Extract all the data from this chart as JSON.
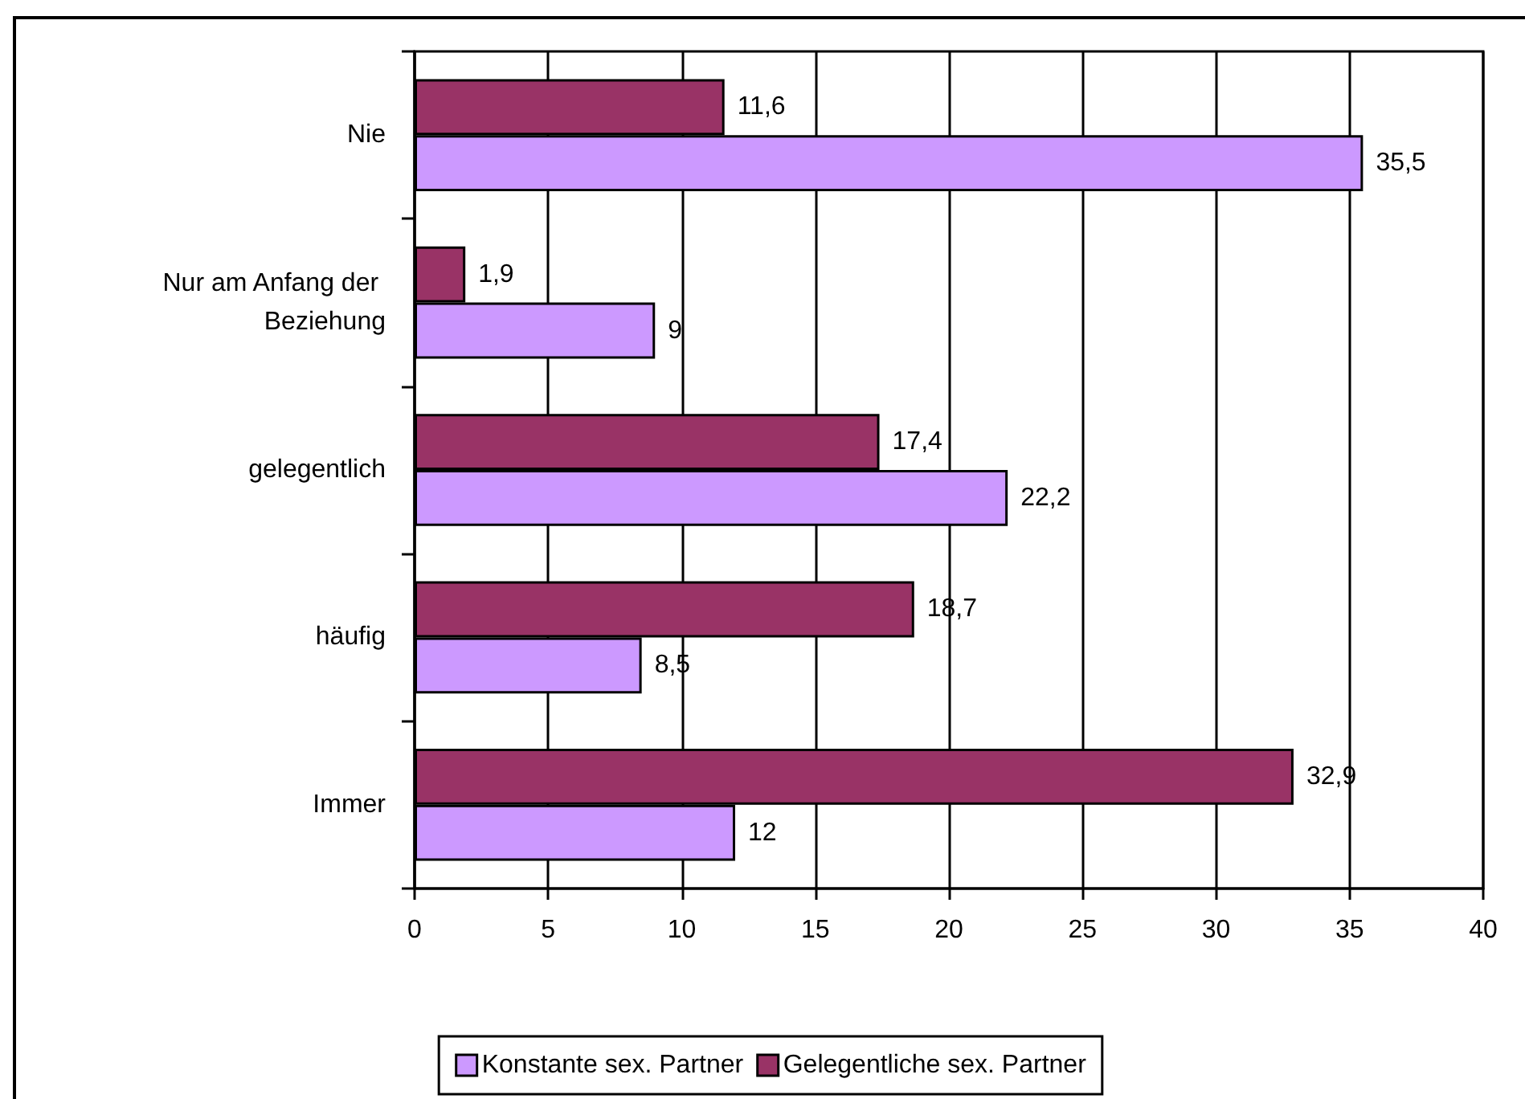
{
  "chart_data": {
    "type": "bar",
    "orientation": "horizontal",
    "categories": [
      "Nie",
      "Nur am Anfang der Beziehung",
      "gelegentlich",
      "häufig",
      "Immer"
    ],
    "series": [
      {
        "name": "Konstante sex. Partner",
        "color": "#cc99ff",
        "values": [
          35.5,
          9,
          22.2,
          8.5,
          12
        ],
        "value_labels": [
          "35,5",
          "9",
          "22,2",
          "8,5",
          "12"
        ]
      },
      {
        "name": "Gelegentliche sex. Partner",
        "color": "#993366",
        "values": [
          11.6,
          1.9,
          17.4,
          18.7,
          32.9
        ],
        "value_labels": [
          "11,6",
          "1,9",
          "17,4",
          "18,7",
          "32,9"
        ]
      }
    ],
    "xlim": [
      0,
      40
    ],
    "xticks": [
      0,
      5,
      10,
      15,
      20,
      25,
      30,
      35,
      40
    ],
    "grid": "x",
    "legend": "bottom"
  }
}
